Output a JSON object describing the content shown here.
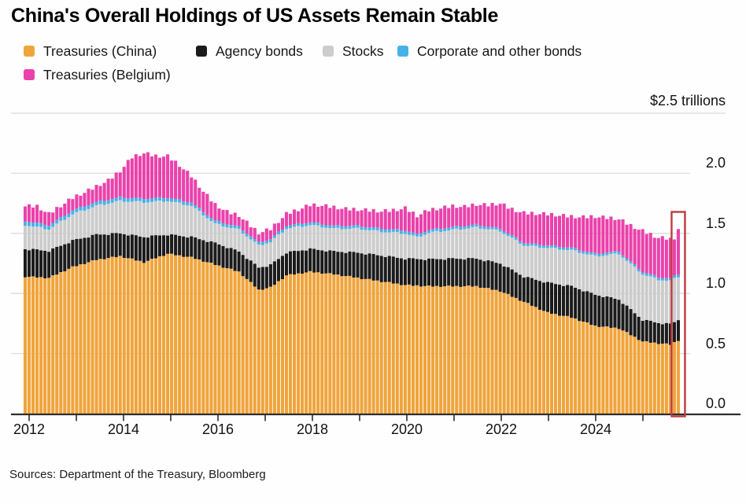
{
  "title": "China's Overall Holdings of US Assets Remain Stable",
  "source_line": "Sources: Department of the Treasury, Bloomberg",
  "colors": {
    "treasuries_china": "#F0A43C",
    "agency_bonds": "#1B1B1B",
    "stocks": "#CCCCCC",
    "corporate_other_bonds": "#45B2E8",
    "treasuries_belgium": "#EA42AB",
    "highlight_box": "#BC3B40",
    "gridline": "#DCDCDC",
    "axis": "#2E2E2E"
  },
  "legend": {
    "rows": [
      [
        {
          "label": "Treasuries (China)",
          "color_key": "treasuries_china"
        },
        {
          "label": "Agency bonds",
          "color_key": "agency_bonds"
        },
        {
          "label": "Stocks",
          "color_key": "stocks"
        },
        {
          "label": "Corporate and other bonds",
          "color_key": "corporate_other_bonds"
        }
      ],
      [
        {
          "label": "Treasuries (Belgium)",
          "color_key": "treasuries_belgium"
        }
      ]
    ]
  },
  "chart_data": {
    "type": "bar",
    "subtype": "stacked-monthly",
    "unit_label": "$2.5 trillions",
    "units": "USD trillions",
    "x_start": "2012-01",
    "x_interval": "monthly",
    "n_months": 166,
    "x_tick_years": [
      2012,
      2013,
      2014,
      2015,
      2016,
      2017,
      2018,
      2019,
      2020,
      2021,
      2022,
      2023,
      2024,
      2025
    ],
    "x_label_years": [
      "2012",
      "2014",
      "2016",
      "2018",
      "2020",
      "2022",
      "2024"
    ],
    "y_tick_labels": [
      "0.0",
      "0.5",
      "1.0",
      "1.5",
      "2.0"
    ],
    "y_ticks": [
      0.0,
      0.5,
      1.0,
      1.5,
      2.0
    ],
    "y_top_gridline": 2.5,
    "grid": true,
    "legend_position": "top",
    "axis_labels_position": "right",
    "highlight": {
      "shape": "box",
      "month_index": 165,
      "color_key": "highlight_box"
    },
    "series": [
      {
        "name": "Treasuries (China)",
        "color_key": "treasuries_china",
        "jitter": 0.006,
        "anchors": [
          [
            0,
            1.14
          ],
          [
            6,
            1.13
          ],
          [
            12,
            1.22
          ],
          [
            18,
            1.28
          ],
          [
            24,
            1.31
          ],
          [
            30,
            1.26
          ],
          [
            36,
            1.33
          ],
          [
            42,
            1.3
          ],
          [
            48,
            1.24
          ],
          [
            54,
            1.18
          ],
          [
            59,
            1.03
          ],
          [
            62,
            1.05
          ],
          [
            66,
            1.15
          ],
          [
            72,
            1.18
          ],
          [
            78,
            1.16
          ],
          [
            84,
            1.13
          ],
          [
            90,
            1.1
          ],
          [
            96,
            1.07
          ],
          [
            102,
            1.06
          ],
          [
            114,
            1.06
          ],
          [
            120,
            1.02
          ],
          [
            126,
            0.93
          ],
          [
            132,
            0.84
          ],
          [
            138,
            0.8
          ],
          [
            144,
            0.73
          ],
          [
            150,
            0.71
          ],
          [
            156,
            0.6
          ],
          [
            160,
            0.585
          ],
          [
            163,
            0.575
          ],
          [
            165,
            0.61
          ]
        ]
      },
      {
        "name": "Agency bonds",
        "color_key": "agency_bonds",
        "jitter": 0.008,
        "anchors": [
          [
            0,
            0.23
          ],
          [
            12,
            0.22
          ],
          [
            18,
            0.21
          ],
          [
            24,
            0.19
          ],
          [
            30,
            0.21
          ],
          [
            36,
            0.16
          ],
          [
            42,
            0.17
          ],
          [
            48,
            0.18
          ],
          [
            54,
            0.17
          ],
          [
            59,
            0.185
          ],
          [
            66,
            0.19
          ],
          [
            78,
            0.19
          ],
          [
            84,
            0.21
          ],
          [
            96,
            0.22
          ],
          [
            108,
            0.23
          ],
          [
            120,
            0.23
          ],
          [
            126,
            0.21
          ],
          [
            132,
            0.25
          ],
          [
            138,
            0.26
          ],
          [
            144,
            0.26
          ],
          [
            150,
            0.24
          ],
          [
            156,
            0.18
          ],
          [
            160,
            0.17
          ],
          [
            165,
            0.17
          ]
        ]
      },
      {
        "name": "Stocks",
        "color_key": "stocks",
        "jitter": 0.008,
        "anchors": [
          [
            0,
            0.2
          ],
          [
            6,
            0.18
          ],
          [
            12,
            0.22
          ],
          [
            18,
            0.24
          ],
          [
            24,
            0.27
          ],
          [
            30,
            0.29
          ],
          [
            36,
            0.28
          ],
          [
            42,
            0.26
          ],
          [
            48,
            0.16
          ],
          [
            54,
            0.18
          ],
          [
            59,
            0.185
          ],
          [
            66,
            0.2
          ],
          [
            72,
            0.2
          ],
          [
            78,
            0.19
          ],
          [
            84,
            0.2
          ],
          [
            90,
            0.2
          ],
          [
            96,
            0.21
          ],
          [
            99,
            0.18
          ],
          [
            102,
            0.22
          ],
          [
            108,
            0.24
          ],
          [
            114,
            0.26
          ],
          [
            120,
            0.27
          ],
          [
            126,
            0.26
          ],
          [
            132,
            0.29
          ],
          [
            138,
            0.3
          ],
          [
            144,
            0.32
          ],
          [
            150,
            0.38
          ],
          [
            156,
            0.38
          ],
          [
            160,
            0.36
          ],
          [
            165,
            0.36
          ]
        ]
      },
      {
        "name": "Corporate and other bonds",
        "color_key": "corporate_other_bonds",
        "jitter": 0.002,
        "anchors": [
          [
            0,
            0.033
          ],
          [
            24,
            0.03
          ],
          [
            48,
            0.025
          ],
          [
            72,
            0.022
          ],
          [
            96,
            0.025
          ],
          [
            120,
            0.02
          ],
          [
            165,
            0.02
          ]
        ]
      },
      {
        "name": "Treasuries (Belgium)",
        "color_key": "treasuries_belgium",
        "jitter": 0.02,
        "anchors": [
          [
            0,
            0.125
          ],
          [
            3,
            0.14
          ],
          [
            6,
            0.095
          ],
          [
            9,
            0.1
          ],
          [
            12,
            0.105
          ],
          [
            15,
            0.115
          ],
          [
            18,
            0.13
          ],
          [
            21,
            0.16
          ],
          [
            24,
            0.22
          ],
          [
            27,
            0.34
          ],
          [
            30,
            0.38
          ],
          [
            33,
            0.35
          ],
          [
            36,
            0.345
          ],
          [
            39,
            0.29
          ],
          [
            42,
            0.22
          ],
          [
            45,
            0.17
          ],
          [
            48,
            0.135
          ],
          [
            51,
            0.1
          ],
          [
            54,
            0.095
          ],
          [
            59,
            0.08
          ],
          [
            62,
            0.085
          ],
          [
            66,
            0.1
          ],
          [
            69,
            0.12
          ],
          [
            72,
            0.145
          ],
          [
            75,
            0.155
          ],
          [
            78,
            0.155
          ],
          [
            81,
            0.14
          ],
          [
            84,
            0.135
          ],
          [
            87,
            0.14
          ],
          [
            90,
            0.145
          ],
          [
            93,
            0.16
          ],
          [
            96,
            0.185
          ],
          [
            99,
            0.155
          ],
          [
            102,
            0.165
          ],
          [
            105,
            0.17
          ],
          [
            108,
            0.175
          ],
          [
            111,
            0.16
          ],
          [
            114,
            0.17
          ],
          [
            117,
            0.18
          ],
          [
            120,
            0.21
          ],
          [
            123,
            0.22
          ],
          [
            126,
            0.25
          ],
          [
            132,
            0.26
          ],
          [
            138,
            0.26
          ],
          [
            141,
            0.28
          ],
          [
            144,
            0.31
          ],
          [
            147,
            0.29
          ],
          [
            150,
            0.27
          ],
          [
            153,
            0.3
          ],
          [
            156,
            0.34
          ],
          [
            159,
            0.33
          ],
          [
            162,
            0.33
          ],
          [
            164,
            0.32
          ],
          [
            165,
            0.38
          ]
        ]
      }
    ]
  }
}
